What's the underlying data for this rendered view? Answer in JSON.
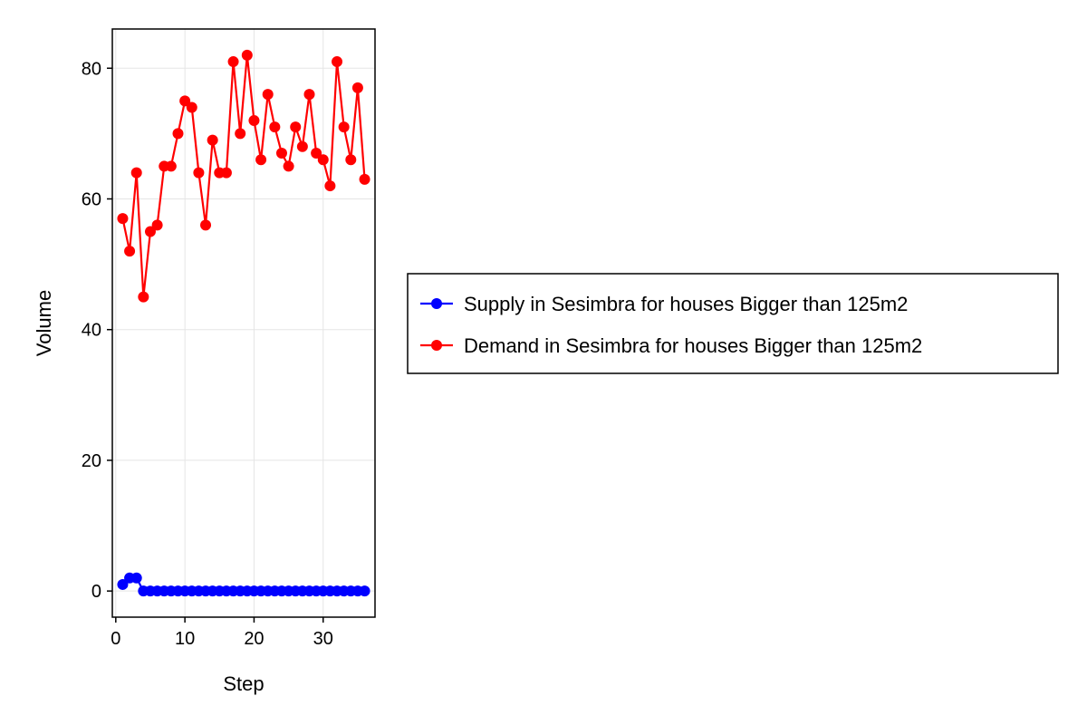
{
  "chart_data": {
    "type": "line",
    "title": "",
    "xlabel": "Step",
    "ylabel": "Volume",
    "xlim": [
      -0.5,
      37.5
    ],
    "ylim": [
      -4,
      86
    ],
    "xticks": [
      0,
      10,
      20,
      30
    ],
    "yticks": [
      0,
      20,
      40,
      60,
      80
    ],
    "grid": true,
    "legend_position": "right",
    "x": [
      1,
      2,
      3,
      4,
      5,
      6,
      7,
      8,
      9,
      10,
      11,
      12,
      13,
      14,
      15,
      16,
      17,
      18,
      19,
      20,
      21,
      22,
      23,
      24,
      25,
      26,
      27,
      28,
      29,
      30,
      31,
      32,
      33,
      34,
      35,
      36
    ],
    "series": [
      {
        "name": "Supply in Sesimbra for houses Bigger than 125m2",
        "color": "#0000ff",
        "values": [
          1,
          2,
          2,
          0,
          0,
          0,
          0,
          0,
          0,
          0,
          0,
          0,
          0,
          0,
          0,
          0,
          0,
          0,
          0,
          0,
          0,
          0,
          0,
          0,
          0,
          0,
          0,
          0,
          0,
          0,
          0,
          0,
          0,
          0,
          0,
          0
        ]
      },
      {
        "name": "Demand in Sesimbra for houses Bigger than 125m2",
        "color": "#ff0000",
        "values": [
          57,
          52,
          64,
          45,
          55,
          56,
          65,
          65,
          70,
          75,
          74,
          64,
          56,
          69,
          64,
          64,
          81,
          70,
          82,
          72,
          66,
          76,
          71,
          67,
          65,
          71,
          68,
          76,
          67,
          66,
          62,
          81,
          71,
          66,
          77,
          63
        ]
      }
    ]
  }
}
